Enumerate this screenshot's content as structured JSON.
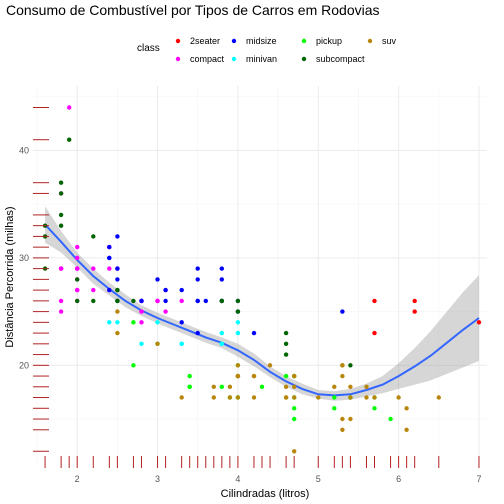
{
  "chart_data": {
    "type": "scatter",
    "title": "Consumo de Combustível por Tipos de Carros em Rodovias",
    "xlabel": "Cilindradas (litros)",
    "ylabel": "Distância Percorrida (milhas)",
    "xlim": [
      1.45,
      7.1
    ],
    "ylim": [
      11,
      46
    ],
    "x_ticks": [
      2,
      3,
      4,
      5,
      6,
      7
    ],
    "y_ticks": [
      20,
      30,
      40
    ],
    "grid": true,
    "rug": true,
    "legend": {
      "title": "class",
      "position": "top",
      "entries": [
        {
          "name": "2seater",
          "color": "#ff0000"
        },
        {
          "name": "compact",
          "color": "#ff00ff"
        },
        {
          "name": "midsize",
          "color": "#0000ff"
        },
        {
          "name": "minivan",
          "color": "#00ffff"
        },
        {
          "name": "pickup",
          "color": "#00ff00"
        },
        {
          "name": "subcompact",
          "color": "#006400"
        },
        {
          "name": "suv",
          "color": "#b8860b"
        }
      ]
    },
    "series": [
      {
        "name": "2seater",
        "color": "#ff0000",
        "points": [
          [
            5.7,
            26
          ],
          [
            5.7,
            23
          ],
          [
            6.2,
            26
          ],
          [
            6.2,
            25
          ],
          [
            7.0,
            24
          ]
        ]
      },
      {
        "name": "compact",
        "color": "#ff00ff",
        "points": [
          [
            1.8,
            29
          ],
          [
            1.8,
            29
          ],
          [
            2.0,
            31
          ],
          [
            2.0,
            30
          ],
          [
            2.8,
            26
          ],
          [
            2.8,
            26
          ],
          [
            3.1,
            27
          ],
          [
            1.8,
            26
          ],
          [
            1.8,
            25
          ],
          [
            2.0,
            28
          ],
          [
            2.0,
            27
          ],
          [
            2.8,
            25
          ],
          [
            3.0,
            26
          ],
          [
            3.1,
            25
          ],
          [
            2.2,
            27
          ],
          [
            2.2,
            29
          ],
          [
            2.4,
            31
          ],
          [
            2.4,
            31
          ],
          [
            3.0,
            26
          ],
          [
            3.0,
            26
          ],
          [
            1.9,
            44
          ],
          [
            2.0,
            29
          ],
          [
            2.0,
            26
          ],
          [
            2.0,
            29
          ],
          [
            2.5,
            29
          ],
          [
            2.5,
            29
          ],
          [
            1.8,
            29
          ],
          [
            1.8,
            36
          ],
          [
            2.0,
            27
          ],
          [
            2.0,
            29
          ],
          [
            2.8,
            24
          ],
          [
            2.8,
            25
          ],
          [
            2.4,
            27
          ],
          [
            2.4,
            29
          ],
          [
            3.3,
            26
          ]
        ]
      },
      {
        "name": "midsize",
        "color": "#0000ff",
        "points": [
          [
            2.4,
            30
          ],
          [
            2.4,
            30
          ],
          [
            2.5,
            29
          ],
          [
            2.5,
            32
          ],
          [
            3.1,
            27
          ],
          [
            3.1,
            26
          ],
          [
            3.5,
            26
          ],
          [
            3.6,
            26
          ],
          [
            3.8,
            28
          ],
          [
            3.8,
            26
          ],
          [
            3.5,
            29
          ],
          [
            3.5,
            28
          ],
          [
            3.3,
            24
          ],
          [
            3.5,
            23
          ],
          [
            4.0,
            26
          ],
          [
            4.0,
            25
          ],
          [
            4.2,
            23
          ],
          [
            2.4,
            31
          ],
          [
            2.5,
            26
          ],
          [
            2.8,
            26
          ],
          [
            2.8,
            26
          ],
          [
            3.8,
            29
          ],
          [
            3.8,
            26
          ],
          [
            3.0,
            28
          ],
          [
            3.3,
            27
          ],
          [
            3.5,
            26
          ],
          [
            2.5,
            28
          ],
          [
            2.4,
            27
          ],
          [
            5.3,
            25
          ]
        ]
      },
      {
        "name": "minivan",
        "color": "#00ffff",
        "points": [
          [
            2.4,
            24
          ],
          [
            3.0,
            24
          ],
          [
            3.3,
            22
          ],
          [
            3.3,
            22
          ],
          [
            3.8,
            23
          ],
          [
            3.8,
            22
          ],
          [
            3.8,
            22
          ],
          [
            4.0,
            23
          ],
          [
            4.0,
            24
          ],
          [
            2.5,
            24
          ],
          [
            2.8,
            22
          ]
        ]
      },
      {
        "name": "pickup",
        "color": "#00ff00",
        "points": [
          [
            2.7,
            20
          ],
          [
            3.0,
            22
          ],
          [
            3.4,
            19
          ],
          [
            3.4,
            18
          ],
          [
            3.9,
            17
          ],
          [
            4.0,
            17
          ],
          [
            4.3,
            18
          ],
          [
            4.7,
            16
          ],
          [
            4.7,
            17
          ],
          [
            5.2,
            16
          ],
          [
            5.7,
            16
          ],
          [
            5.9,
            15
          ],
          [
            4.7,
            19
          ],
          [
            4.7,
            15
          ],
          [
            5.2,
            17
          ],
          [
            4.0,
            20
          ],
          [
            4.6,
            19
          ],
          [
            5.4,
            17
          ],
          [
            5.4,
            17
          ],
          [
            2.7,
            24
          ],
          [
            3.4,
            18
          ],
          [
            4.0,
            19
          ],
          [
            4.0,
            17
          ],
          [
            4.7,
            17
          ],
          [
            4.7,
            19
          ],
          [
            5.7,
            17
          ],
          [
            3.8,
            18
          ]
        ]
      },
      {
        "name": "subcompact",
        "color": "#006400",
        "points": [
          [
            1.6,
            33
          ],
          [
            1.6,
            32
          ],
          [
            1.8,
            37
          ],
          [
            1.8,
            36
          ],
          [
            1.9,
            41
          ],
          [
            2.0,
            28
          ],
          [
            2.2,
            26
          ],
          [
            2.5,
            26
          ],
          [
            2.5,
            27
          ],
          [
            3.8,
            26
          ],
          [
            4.6,
            21
          ],
          [
            4.6,
            22
          ],
          [
            5.4,
            20
          ],
          [
            3.8,
            26
          ],
          [
            4.0,
            26
          ],
          [
            4.6,
            23
          ],
          [
            1.6,
            29
          ],
          [
            1.8,
            34
          ],
          [
            1.8,
            33
          ],
          [
            2.0,
            26
          ],
          [
            2.5,
            27
          ],
          [
            2.7,
            26
          ],
          [
            2.2,
            32
          ],
          [
            4.0,
            25
          ],
          [
            2.5,
            26
          ]
        ]
      },
      {
        "name": "suv",
        "color": "#b8860b",
        "points": [
          [
            5.3,
            20
          ],
          [
            5.3,
            15
          ],
          [
            5.3,
            20
          ],
          [
            5.7,
            17
          ],
          [
            6.0,
            17
          ],
          [
            6.5,
            17
          ],
          [
            5.3,
            19
          ],
          [
            5.3,
            14
          ],
          [
            3.7,
            17
          ],
          [
            3.7,
            18
          ],
          [
            3.9,
            17
          ],
          [
            3.9,
            18
          ],
          [
            4.7,
            19
          ],
          [
            4.7,
            18
          ],
          [
            4.7,
            17
          ],
          [
            4.7,
            12
          ],
          [
            5.2,
            18
          ],
          [
            4.0,
            19
          ],
          [
            4.0,
            19
          ],
          [
            4.6,
            17
          ],
          [
            5.0,
            17
          ],
          [
            4.2,
            19
          ],
          [
            4.2,
            17
          ],
          [
            4.4,
            20
          ],
          [
            4.6,
            18
          ],
          [
            5.4,
            15
          ],
          [
            5.4,
            18
          ],
          [
            4.2,
            19
          ],
          [
            4.6,
            17
          ],
          [
            4.0,
            20
          ],
          [
            6.1,
            14
          ],
          [
            6.1,
            16
          ],
          [
            5.6,
            18
          ],
          [
            5.6,
            17
          ],
          [
            5.4,
            17
          ],
          [
            2.5,
            25
          ],
          [
            2.5,
            23
          ],
          [
            3.3,
            17
          ],
          [
            4.0,
            19
          ],
          [
            4.7,
            19
          ],
          [
            4.0,
            17
          ],
          [
            3.0,
            22
          ],
          [
            4.0,
            19
          ]
        ]
      }
    ],
    "smooth": {
      "method": "loess",
      "color": "#3366ff",
      "band_color": "#999999",
      "x": [
        1.6,
        1.8,
        2.0,
        2.2,
        2.4,
        2.6,
        2.8,
        3.0,
        3.2,
        3.4,
        3.6,
        3.8,
        4.0,
        4.2,
        4.4,
        4.6,
        4.8,
        5.0,
        5.2,
        5.4,
        5.6,
        5.8,
        6.0,
        6.2,
        6.4,
        6.6,
        6.8,
        7.0
      ],
      "y": [
        33.1,
        31.5,
        29.8,
        28.3,
        27.1,
        26.0,
        25.1,
        24.4,
        23.8,
        23.2,
        22.6,
        22.1,
        21.4,
        20.5,
        19.4,
        18.5,
        17.8,
        17.3,
        17.2,
        17.3,
        17.7,
        18.2,
        19.0,
        19.9,
        20.9,
        22.1,
        23.3,
        24.4
      ],
      "ymin": [
        31.4,
        30.5,
        29.1,
        27.6,
        26.5,
        25.4,
        24.6,
        23.9,
        23.3,
        22.7,
        22.1,
        21.6,
        20.8,
        19.9,
        18.9,
        18.0,
        17.3,
        16.9,
        16.7,
        16.8,
        17.1,
        17.4,
        17.8,
        18.2,
        18.6,
        19.2,
        19.8,
        20.4
      ],
      "ymax": [
        34.8,
        32.5,
        30.5,
        29.0,
        27.7,
        26.6,
        25.6,
        24.9,
        24.3,
        23.7,
        23.1,
        22.6,
        22.0,
        21.1,
        19.9,
        19.0,
        18.3,
        17.7,
        17.6,
        17.8,
        18.3,
        19.0,
        20.2,
        21.6,
        23.2,
        25.0,
        26.8,
        28.4
      ]
    }
  }
}
